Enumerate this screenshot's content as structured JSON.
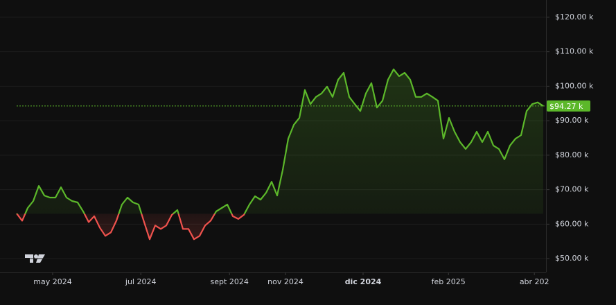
{
  "chart_data": {
    "type": "baseline",
    "values": [
      63100,
      61000,
      64700,
      66700,
      71100,
      68300,
      67700,
      67700,
      70700,
      67700,
      66700,
      66300,
      63700,
      60600,
      62300,
      59000,
      56600,
      57600,
      61000,
      65700,
      67700,
      66300,
      65700,
      60600,
      55600,
      59600,
      58600,
      59600,
      62700,
      64100,
      58600,
      58600,
      55600,
      56600,
      59600,
      61000,
      63700,
      64700,
      65700,
      62300,
      61500,
      62700,
      65700,
      68100,
      67100,
      69100,
      72300,
      68300,
      75700,
      84800,
      88800,
      90800,
      98900,
      94800,
      96900,
      97900,
      99900,
      96900,
      101900,
      103900,
      96900,
      94800,
      92800,
      97900,
      100900,
      93800,
      95800,
      101900,
      104900,
      102900,
      103900,
      101900,
      96900,
      96900,
      97900,
      96900,
      95800,
      84800,
      90800,
      86800,
      83800,
      81800,
      83800,
      86800,
      83800,
      86800,
      82800,
      81800,
      78800,
      82800,
      84800,
      85800,
      92800,
      94800,
      95300,
      94270
    ],
    "baseline": 63000,
    "up_color": "#5cb82a",
    "down_color": "#f0524d",
    "xlim": [
      0,
      95.5
    ],
    "xticks": [
      {
        "value": 6.5,
        "label": "may 2024"
      },
      {
        "value": 22.4,
        "label": "jul 2024"
      },
      {
        "value": 38.4,
        "label": "sept 2024"
      },
      {
        "value": 48.5,
        "label": "nov 2024"
      },
      {
        "value": 62.5,
        "label": "dic 2024",
        "bold": true
      },
      {
        "value": 77.9,
        "label": "feb 2025"
      },
      {
        "value": 93.4,
        "label": "abr 202"
      }
    ],
    "ylim": [
      46000,
      125000
    ],
    "yticks": [
      {
        "value": 50000,
        "label": "$50.00 k"
      },
      {
        "value": 60000,
        "label": "$60.00 k"
      },
      {
        "value": 70000,
        "label": "$70.00 k"
      },
      {
        "value": 80000,
        "label": "$80.00 k"
      },
      {
        "value": 90000,
        "label": "$90.00 k"
      },
      {
        "value": 100000,
        "label": "$100.00 k"
      },
      {
        "value": 110000,
        "label": "$110.00 k"
      },
      {
        "value": 120000,
        "label": "$120.00 k"
      }
    ],
    "price_line": {
      "value": 94270,
      "label": "$94.27 k"
    },
    "grid": true
  }
}
